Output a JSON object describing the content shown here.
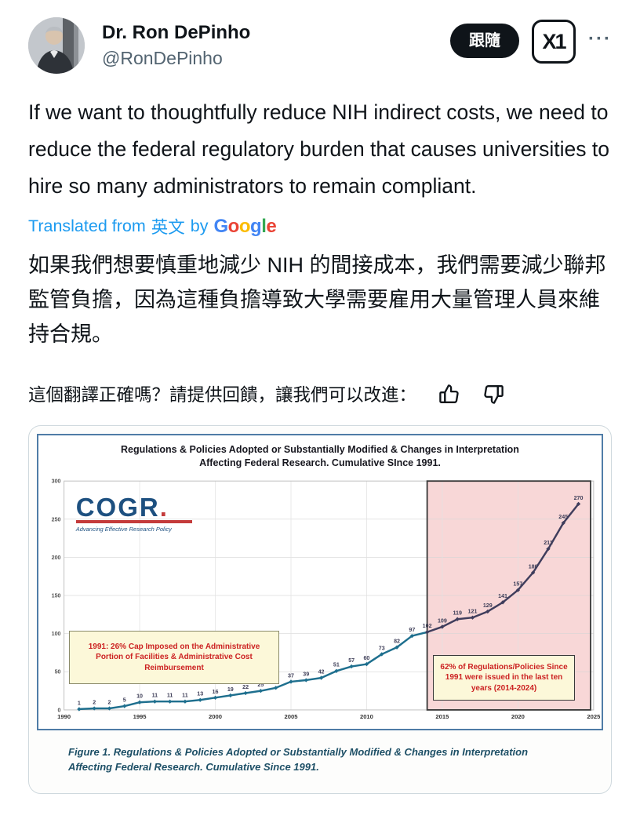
{
  "header": {
    "display_name": "Dr. Ron DePinho",
    "handle": "@RonDePinho",
    "follow_label": "跟隨",
    "more_label": "···"
  },
  "tweet": {
    "text": "If we want to thoughtfully reduce NIH indirect costs, we need to reduce the federal regulatory burden that causes universities to hire so many administrators to remain compliant.",
    "translated_prefix": "Translated from",
    "translated_lang": "英文",
    "translated_by": "by",
    "google": {
      "word": "Google",
      "letters": [
        {
          "ch": "G",
          "color": "#4285F4"
        },
        {
          "ch": "o",
          "color": "#EA4335"
        },
        {
          "ch": "o",
          "color": "#FBBC05"
        },
        {
          "ch": "g",
          "color": "#4285F4"
        },
        {
          "ch": "l",
          "color": "#34A853"
        },
        {
          "ch": "e",
          "color": "#EA4335"
        }
      ]
    },
    "translation": "如果我們想要慎重地減少 NIH 的間接成本，我們需要減少聯邦監管負擔，因為這種負擔導致大學需要雇用大量管理人員來維持合規。",
    "feedback_prompt": "這個翻譯正確嗎？請提供回饋，讓我們可以改進："
  },
  "chart_data": {
    "type": "line",
    "title": "Regulations & Policies Adopted or Substantially Modified & Changes in Interpretation Affecting Federal Research. Cumulative SInce 1991.",
    "title_lines": [
      "Regulations & Policies Adopted or Substantially Modified & Changes in Interpretation",
      "Affecting Federal Research. Cumulative SInce 1991."
    ],
    "x": [
      1991,
      1992,
      1993,
      1994,
      1995,
      1996,
      1997,
      1998,
      1999,
      2000,
      2001,
      2002,
      2003,
      2004,
      2005,
      2006,
      2007,
      2008,
      2009,
      2010,
      2011,
      2012,
      2013,
      2014,
      2015,
      2016,
      2017,
      2018,
      2019,
      2020,
      2021,
      2022,
      2023,
      2024
    ],
    "values": [
      1,
      2,
      2,
      5,
      10,
      11,
      11,
      11,
      13,
      16,
      19,
      22,
      25,
      29,
      37,
      39,
      42,
      51,
      57,
      60,
      73,
      82,
      97,
      102,
      109,
      119,
      121,
      129,
      141,
      157,
      180,
      211,
      245,
      270
    ],
    "xlabel": "",
    "ylabel": "",
    "xlim": [
      1990,
      2025
    ],
    "ylim": [
      0,
      300
    ],
    "x_ticks": [
      1990,
      1995,
      2000,
      2005,
      2010,
      2015,
      2020,
      2025
    ],
    "y_ticks": [
      0,
      50,
      100,
      150,
      200,
      250,
      300
    ],
    "grid": true,
    "legend": false,
    "line_color": "#1e6f8e",
    "line_color_highlight": "#3f3d5c",
    "label_color": "#3e3e58",
    "highlight_region": {
      "x_start": 2014,
      "x_end": 2024.8,
      "fill": "#f8d7d7",
      "border": "#3a3a3a"
    },
    "annotations": [
      {
        "id": "cap-1991",
        "text": "1991:  26% Cap Imposed on the Administrative Portion of Facilities & Administrative Cost Reimbursement"
      },
      {
        "id": "last-ten-years",
        "text": "62% of Regulations/Policies Since 1991 were issued in the last ten years (2014-2024)"
      }
    ],
    "logo": {
      "name": "COGR",
      "dot": ".",
      "tagline": "Advancing Effective Research Policy"
    },
    "caption": "Figure 1.  Regulations & Policies Adopted or Substantially Modified & Changes in Interpretation Affecting Federal Research.  Cumulative Since 1991."
  }
}
